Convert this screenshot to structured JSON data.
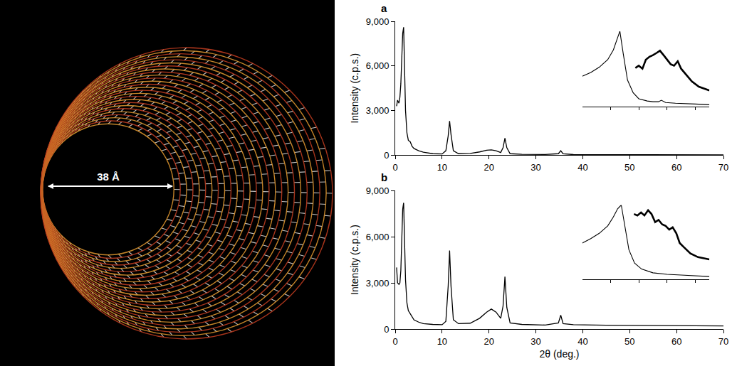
{
  "image_label": "38 Å",
  "chart_data": [
    {
      "panel": "a",
      "type": "line",
      "color": "#000000",
      "ylabel": "Intensity (c.p.s.)",
      "x": [
        0.3,
        0.5,
        0.8,
        1.0,
        1.2,
        1.4,
        1.6,
        1.8,
        2.0,
        2.2,
        2.5,
        2.8,
        3.2,
        3.6,
        4.0,
        5,
        6,
        8,
        10,
        10.8,
        11.3,
        11.6,
        11.9,
        12.4,
        13.5,
        16,
        18,
        19.5,
        20.5,
        21.5,
        22.5,
        23.0,
        23.4,
        23.8,
        24.5,
        27,
        32,
        34.8,
        35.3,
        35.8,
        38,
        45,
        55,
        70
      ],
      "values": [
        3300,
        3700,
        3500,
        3900,
        4800,
        6500,
        8200,
        8600,
        6000,
        3000,
        1500,
        1000,
        900,
        600,
        450,
        300,
        200,
        100,
        80,
        300,
        1300,
        2300,
        1400,
        300,
        100,
        120,
        220,
        330,
        360,
        300,
        180,
        500,
        1150,
        500,
        100,
        60,
        50,
        100,
        300,
        90,
        40,
        30,
        30,
        20
      ],
      "xlim": [
        0,
        70
      ],
      "xticks": [
        0,
        10,
        20,
        30,
        40,
        50,
        60,
        70
      ],
      "ylim": [
        0,
        9000
      ],
      "yticks": [
        0,
        {
          "value": 3000,
          "label": "3,000"
        },
        {
          "value": 6000,
          "label": "6,000"
        },
        {
          "value": 9000,
          "label": "9,000"
        }
      ],
      "inset": {
        "type": "line",
        "tick_labels": false,
        "xlim": [
          1,
          5.5
        ],
        "ylim": [
          0,
          100
        ],
        "xticks": [
          2,
          3,
          4,
          5
        ],
        "series": [
          {
            "line_style": "thin",
            "color": "#000000",
            "x": [
              1.0,
              1.3,
              1.6,
              1.9,
              2.1,
              2.25,
              2.33,
              2.45,
              2.6,
              2.8,
              3.0,
              3.3,
              3.5,
              3.7,
              3.8,
              3.95,
              4.3,
              5.0,
              5.5
            ],
            "values": [
              40,
              45,
              52,
              62,
              75,
              90,
              100,
              70,
              35,
              18,
              10,
              7,
              6,
              6,
              8,
              5,
              4,
              3,
              2
            ]
          },
          {
            "line_style": "thick",
            "color": "#000000",
            "x": [
              2.88,
              3.0,
              3.13,
              3.25,
              3.38,
              3.5,
              3.63,
              3.75,
              3.88,
              4.0,
              4.13,
              4.25,
              4.38,
              4.5,
              4.63,
              4.88,
              5.13,
              5.5
            ],
            "values": [
              51,
              54,
              50,
              62,
              66,
              68,
              71,
              74,
              68,
              62,
              56,
              54,
              60,
              50,
              44,
              33,
              26,
              21
            ]
          }
        ]
      }
    },
    {
      "panel": "b",
      "type": "line",
      "color": "#000000",
      "ylabel": "Intensity (c.p.s.)",
      "xlabel": "2θ (deg.)",
      "x": [
        0.3,
        0.5,
        0.8,
        1.0,
        1.2,
        1.4,
        1.6,
        1.8,
        2.0,
        2.2,
        2.5,
        2.8,
        3.2,
        3.6,
        4.0,
        5,
        6,
        8,
        10,
        10.8,
        11.3,
        11.6,
        11.9,
        12.4,
        13.5,
        16,
        18,
        19.5,
        20.5,
        21.5,
        22.5,
        23.0,
        23.4,
        23.8,
        24.5,
        27,
        32,
        34.8,
        35.3,
        35.8,
        38,
        45,
        55,
        70
      ],
      "values": [
        4000,
        3000,
        2900,
        3000,
        3800,
        6000,
        7800,
        8200,
        6000,
        3200,
        1700,
        1200,
        1000,
        800,
        600,
        450,
        350,
        300,
        280,
        500,
        2800,
        5100,
        2800,
        600,
        350,
        380,
        700,
        1100,
        1300,
        1100,
        700,
        1500,
        3400,
        1400,
        400,
        300,
        260,
        400,
        900,
        350,
        280,
        250,
        220,
        200
      ],
      "xlim": [
        0,
        70
      ],
      "xticks": [
        0,
        10,
        20,
        30,
        40,
        50,
        60,
        70
      ],
      "ylim": [
        0,
        9000
      ],
      "yticks": [
        0,
        {
          "value": 3000,
          "label": "3,000"
        },
        {
          "value": 6000,
          "label": "6,000"
        },
        {
          "value": 9000,
          "label": "9,000"
        }
      ],
      "inset": {
        "type": "line",
        "tick_labels": false,
        "xlim": [
          1,
          5.5
        ],
        "ylim": [
          0,
          100
        ],
        "xticks": [
          2,
          3,
          4,
          5
        ],
        "series": [
          {
            "line_style": "thin",
            "color": "#000000",
            "x": [
              1.0,
              1.3,
              1.6,
              1.9,
              2.1,
              2.25,
              2.38,
              2.5,
              2.65,
              2.85,
              3.1,
              3.5,
              4.0,
              4.5,
              5.0,
              5.5
            ],
            "values": [
              49,
              55,
              62,
              72,
              84,
              95,
              100,
              72,
              40,
              22,
              14,
              9,
              7,
              6,
              5,
              4
            ]
          },
          {
            "line_style": "thick",
            "color": "#000000",
            "x": [
              2.83,
              2.95,
              3.08,
              3.2,
              3.33,
              3.45,
              3.58,
              3.7,
              3.83,
              3.95,
              4.08,
              4.2,
              4.33,
              4.45,
              4.58,
              4.83,
              5.1,
              5.5
            ],
            "values": [
              88,
              86,
              90,
              86,
              93,
              88,
              77,
              80,
              74,
              72,
              67,
              70,
              62,
              49,
              44,
              35,
              30,
              27
            ]
          }
        ]
      }
    }
  ]
}
